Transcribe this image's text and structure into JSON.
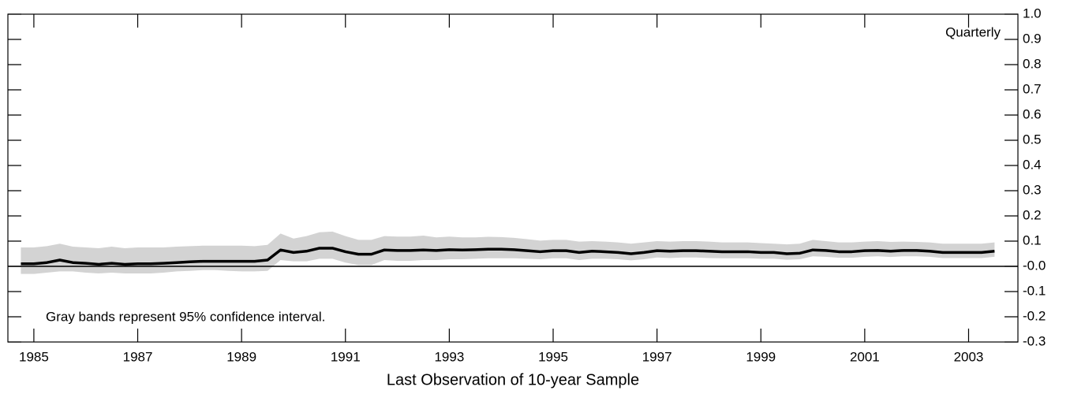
{
  "chart_data": {
    "type": "line",
    "note": "Gray bands represent 95% confidence interval.",
    "frequency_label": "Quarterly",
    "x_label": "Last Observation of 10-year Sample",
    "x": [
      1984.75,
      1985,
      1985.25,
      1985.5,
      1985.75,
      1986,
      1986.25,
      1986.5,
      1986.75,
      1987,
      1987.25,
      1987.5,
      1987.75,
      1988,
      1988.25,
      1988.5,
      1988.75,
      1989,
      1989.25,
      1989.5,
      1989.75,
      1990,
      1990.25,
      1990.5,
      1990.75,
      1991,
      1991.25,
      1991.5,
      1991.75,
      1992,
      1992.25,
      1992.5,
      1992.75,
      1993,
      1993.25,
      1993.5,
      1993.75,
      1994,
      1994.25,
      1994.5,
      1994.75,
      1995,
      1995.25,
      1995.5,
      1995.75,
      1996,
      1996.25,
      1996.5,
      1996.75,
      1997,
      1997.25,
      1997.5,
      1997.75,
      1998,
      1998.25,
      1998.5,
      1998.75,
      1999,
      1999.25,
      1999.5,
      1999.75,
      2000,
      2000.25,
      2000.5,
      2000.75,
      2001,
      2001.25,
      2001.5,
      2001.75,
      2002,
      2002.25,
      2002.5,
      2002.75,
      2003,
      2003.25,
      2003.5
    ],
    "values": [
      0.01,
      0.01,
      0.015,
      0.025,
      0.015,
      0.012,
      0.008,
      0.012,
      0.008,
      0.01,
      0.01,
      0.012,
      0.015,
      0.018,
      0.02,
      0.02,
      0.02,
      0.02,
      0.02,
      0.025,
      0.065,
      0.055,
      0.06,
      0.072,
      0.072,
      0.058,
      0.048,
      0.048,
      0.065,
      0.063,
      0.063,
      0.065,
      0.063,
      0.066,
      0.065,
      0.066,
      0.068,
      0.068,
      0.066,
      0.062,
      0.058,
      0.062,
      0.062,
      0.055,
      0.06,
      0.058,
      0.055,
      0.05,
      0.055,
      0.062,
      0.06,
      0.062,
      0.062,
      0.06,
      0.058,
      0.058,
      0.058,
      0.055,
      0.055,
      0.05,
      0.052,
      0.065,
      0.063,
      0.058,
      0.058,
      0.062,
      0.063,
      0.06,
      0.063,
      0.063,
      0.06,
      0.055,
      0.055,
      0.055,
      0.055,
      0.06
    ],
    "band_lower": [
      -0.03,
      -0.03,
      -0.025,
      -0.02,
      -0.02,
      -0.025,
      -0.028,
      -0.025,
      -0.028,
      -0.028,
      -0.028,
      -0.025,
      -0.02,
      -0.018,
      -0.015,
      -0.015,
      -0.018,
      -0.02,
      -0.02,
      -0.018,
      0.025,
      0.02,
      0.02,
      0.03,
      0.03,
      0.015,
      0.005,
      0.005,
      0.025,
      0.022,
      0.022,
      0.025,
      0.025,
      0.028,
      0.028,
      0.03,
      0.032,
      0.032,
      0.032,
      0.03,
      0.028,
      0.032,
      0.032,
      0.025,
      0.03,
      0.03,
      0.028,
      0.024,
      0.028,
      0.035,
      0.033,
      0.035,
      0.035,
      0.033,
      0.032,
      0.032,
      0.032,
      0.03,
      0.03,
      0.026,
      0.028,
      0.04,
      0.038,
      0.034,
      0.034,
      0.038,
      0.04,
      0.037,
      0.04,
      0.04,
      0.038,
      0.033,
      0.033,
      0.033,
      0.033,
      0.038
    ],
    "band_upper": [
      0.075,
      0.075,
      0.08,
      0.09,
      0.078,
      0.075,
      0.072,
      0.078,
      0.072,
      0.075,
      0.075,
      0.075,
      0.078,
      0.08,
      0.082,
      0.082,
      0.082,
      0.082,
      0.08,
      0.085,
      0.13,
      0.11,
      0.12,
      0.135,
      0.138,
      0.12,
      0.105,
      0.105,
      0.12,
      0.118,
      0.118,
      0.122,
      0.115,
      0.118,
      0.115,
      0.115,
      0.117,
      0.116,
      0.113,
      0.108,
      0.102,
      0.105,
      0.105,
      0.098,
      0.1,
      0.098,
      0.095,
      0.09,
      0.095,
      0.1,
      0.098,
      0.1,
      0.1,
      0.098,
      0.095,
      0.095,
      0.095,
      0.092,
      0.09,
      0.087,
      0.09,
      0.105,
      0.1,
      0.095,
      0.095,
      0.098,
      0.1,
      0.097,
      0.098,
      0.097,
      0.095,
      0.09,
      0.09,
      0.09,
      0.09,
      0.095
    ],
    "color": "#000000",
    "band_color": "#d3d3d3",
    "xlim": [
      1984.5,
      2003.95
    ],
    "xticks": [
      1985,
      1987,
      1989,
      1991,
      1993,
      1995,
      1997,
      1999,
      2001,
      2003
    ],
    "ylim": [
      -0.3,
      1.0
    ],
    "yticks": [
      {
        "value": 1,
        "label": "1.0"
      },
      0.9,
      0.8,
      0.7,
      0.6,
      0.5,
      0.4,
      0.3,
      0.2,
      0.1,
      {
        "value": 0,
        "label": "-0.0"
      },
      -0.1,
      -0.2,
      -0.3
    ],
    "zero_line": true
  }
}
